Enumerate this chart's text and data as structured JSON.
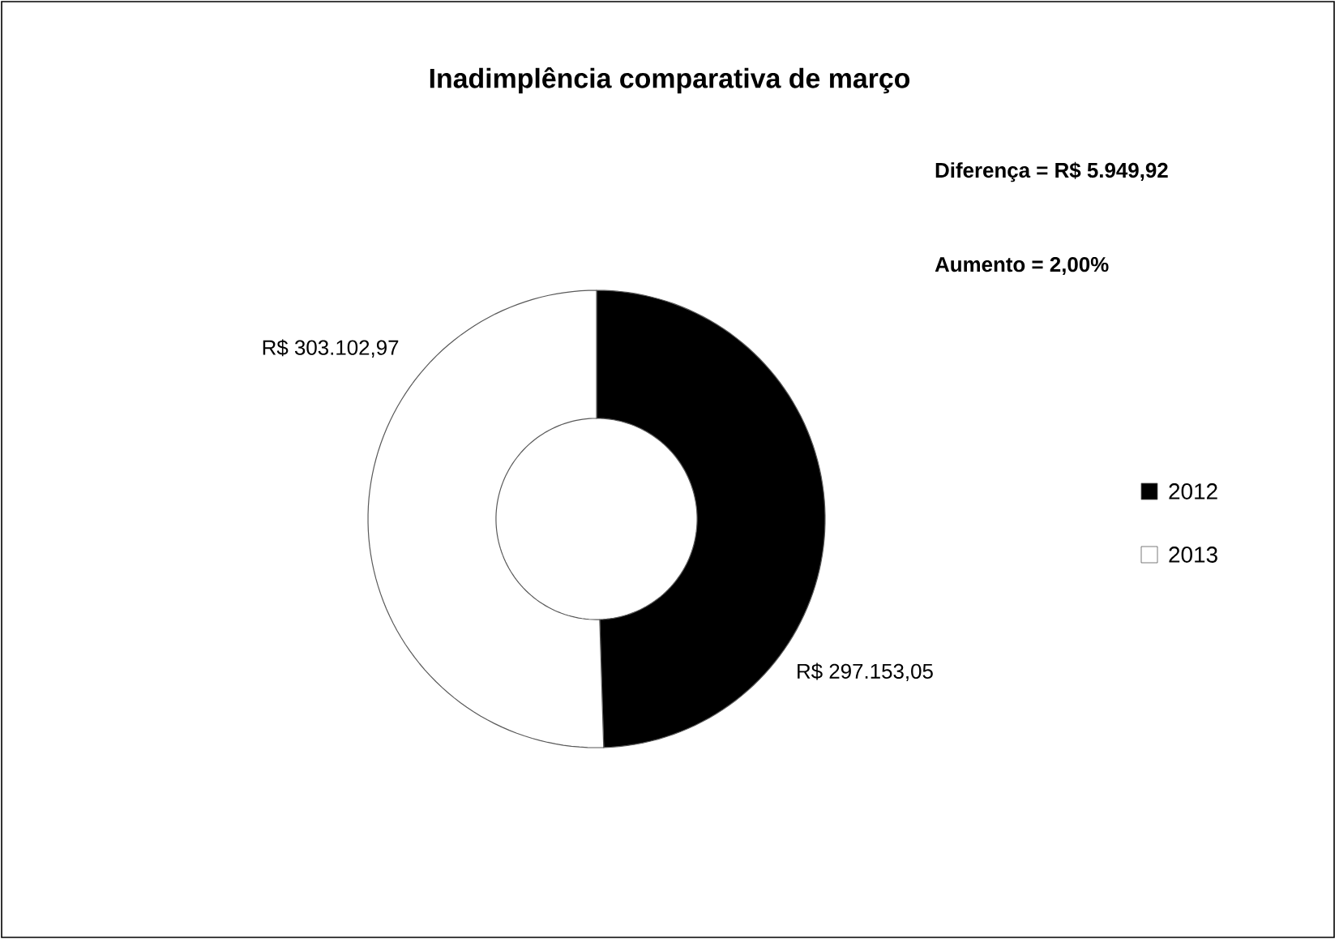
{
  "chart_data": {
    "type": "donut",
    "title": "Inadimplência comparativa de março",
    "categories": [
      "2012",
      "2013"
    ],
    "values": [
      297153.05,
      303102.97
    ],
    "colors": [
      "#000000",
      "#ffffff"
    ],
    "value_labels": [
      "R$ 297.153,05",
      "R$ 303.102,97"
    ],
    "annotations": [
      "Diferença = R$ 5.949,92",
      "Aumento = 2,00%"
    ],
    "legend": "right"
  }
}
